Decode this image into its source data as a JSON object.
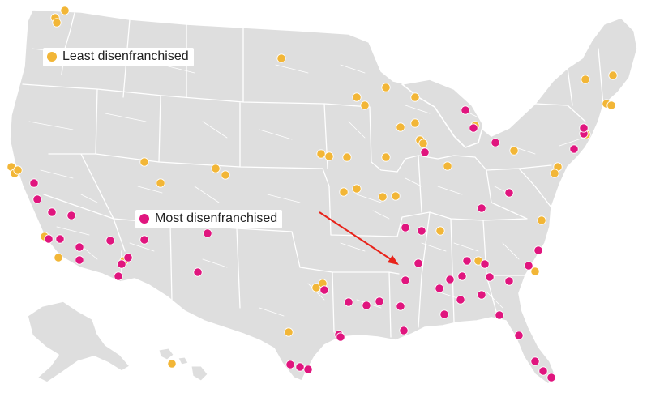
{
  "legend": {
    "least": {
      "label": "Least disenfranchised",
      "color": "#F2B637"
    },
    "most": {
      "label": "Most disenfranchised",
      "color": "#E0157E"
    }
  },
  "annotation": {
    "arrow_color": "#E8231A"
  },
  "colors": {
    "land": "#DEDEDE",
    "borders": "#FFFFFF",
    "background": "#FFFFFF"
  },
  "least_dot_count": 48,
  "most_dot_count": 56
}
